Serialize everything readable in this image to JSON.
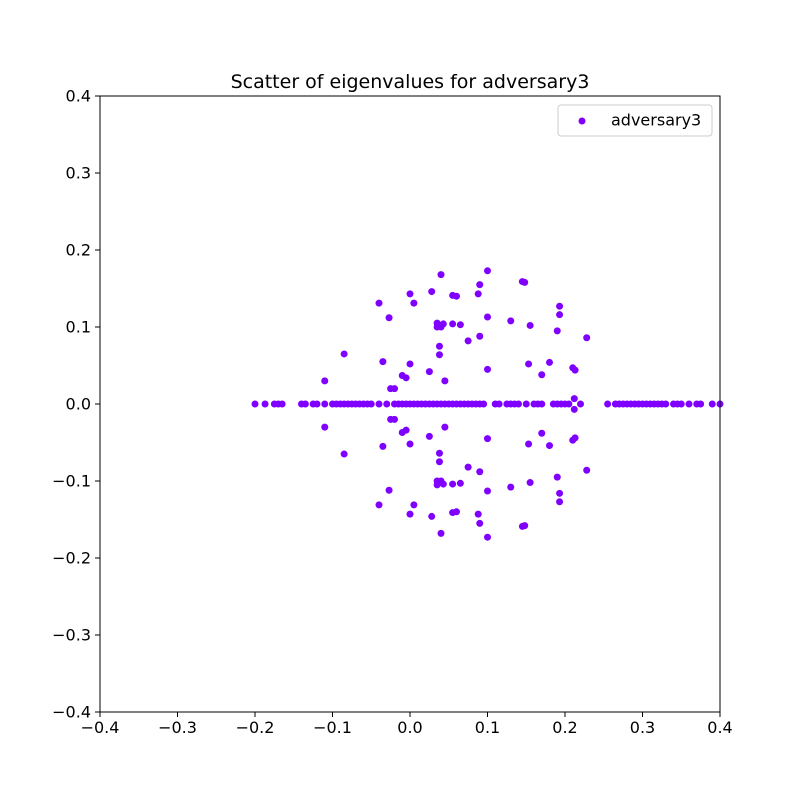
{
  "chart_data": {
    "type": "scatter",
    "title": "Scatter of eigenvalues for adversary3",
    "xlabel": "",
    "ylabel": "",
    "xlim": [
      -0.4,
      0.4
    ],
    "ylim": [
      -0.4,
      0.4
    ],
    "xticks": [
      -0.4,
      -0.3,
      -0.2,
      -0.1,
      0.0,
      0.1,
      0.2,
      0.3,
      0.4
    ],
    "yticks": [
      -0.4,
      -0.3,
      -0.2,
      -0.1,
      0.0,
      0.1,
      0.2,
      0.3,
      0.4
    ],
    "xtick_labels": [
      "−0.4",
      "−0.3",
      "−0.2",
      "−0.1",
      "0.0",
      "0.1",
      "0.2",
      "0.3",
      "0.4"
    ],
    "ytick_labels": [
      "−0.4",
      "−0.3",
      "−0.2",
      "−0.1",
      "0.0",
      "0.1",
      "0.2",
      "0.3",
      "0.4"
    ],
    "grid": false,
    "legend_position": "top-right",
    "series": [
      {
        "name": "adversary3",
        "color": "#8000ff",
        "real_axis_points": [
          -0.2,
          -0.187,
          -0.175,
          -0.17,
          -0.165,
          -0.14,
          -0.135,
          -0.125,
          -0.12,
          -0.11,
          -0.1,
          -0.095,
          -0.09,
          -0.085,
          -0.08,
          -0.075,
          -0.07,
          -0.065,
          -0.06,
          -0.055,
          -0.05,
          -0.04,
          -0.03,
          -0.02,
          -0.015,
          -0.01,
          -0.005,
          0.0,
          0.005,
          0.01,
          0.015,
          0.02,
          0.025,
          0.03,
          0.035,
          0.04,
          0.045,
          0.05,
          0.055,
          0.06,
          0.065,
          0.07,
          0.075,
          0.08,
          0.085,
          0.09,
          0.095,
          0.11,
          0.115,
          0.125,
          0.13,
          0.135,
          0.14,
          0.15,
          0.16,
          0.165,
          0.17,
          0.185,
          0.19,
          0.195,
          0.2,
          0.205,
          0.22,
          0.255,
          0.265,
          0.27,
          0.275,
          0.28,
          0.285,
          0.29,
          0.295,
          0.3,
          0.305,
          0.31,
          0.315,
          0.32,
          0.325,
          0.33,
          0.34,
          0.345,
          0.35,
          0.36,
          0.37,
          0.375,
          0.39,
          0.4
        ],
        "conjugate_pairs": [
          [
            -0.11,
            0.03
          ],
          [
            -0.085,
            0.065
          ],
          [
            -0.04,
            0.131
          ],
          [
            -0.035,
            0.055
          ],
          [
            -0.027,
            0.112
          ],
          [
            -0.025,
            0.02
          ],
          [
            -0.02,
            0.02
          ],
          [
            -0.01,
            0.037
          ],
          [
            -0.005,
            0.034
          ],
          [
            0.0,
            0.143
          ],
          [
            0.0,
            0.052
          ],
          [
            0.005,
            0.131
          ],
          [
            0.025,
            0.042
          ],
          [
            0.028,
            0.146
          ],
          [
            0.035,
            0.105
          ],
          [
            0.035,
            0.1
          ],
          [
            0.04,
            0.168
          ],
          [
            0.038,
            0.075
          ],
          [
            0.038,
            0.064
          ],
          [
            0.04,
            0.1
          ],
          [
            0.043,
            0.104
          ],
          [
            0.045,
            0.03
          ],
          [
            0.055,
            0.141
          ],
          [
            0.055,
            0.104
          ],
          [
            0.06,
            0.14
          ],
          [
            0.065,
            0.103
          ],
          [
            0.075,
            0.082
          ],
          [
            0.088,
            0.143
          ],
          [
            0.09,
            0.155
          ],
          [
            0.09,
            0.088
          ],
          [
            0.1,
            0.173
          ],
          [
            0.1,
            0.113
          ],
          [
            0.1,
            0.045
          ],
          [
            0.13,
            0.108
          ],
          [
            0.145,
            0.159
          ],
          [
            0.148,
            0.158
          ],
          [
            0.153,
            0.052
          ],
          [
            0.155,
            0.102
          ],
          [
            0.17,
            0.038
          ],
          [
            0.18,
            0.054
          ],
          [
            0.19,
            0.095
          ],
          [
            0.193,
            0.127
          ],
          [
            0.193,
            0.116
          ],
          [
            0.21,
            0.047
          ],
          [
            0.213,
            0.044
          ],
          [
            0.212,
            0.007
          ],
          [
            0.228,
            0.086
          ]
        ]
      }
    ]
  }
}
